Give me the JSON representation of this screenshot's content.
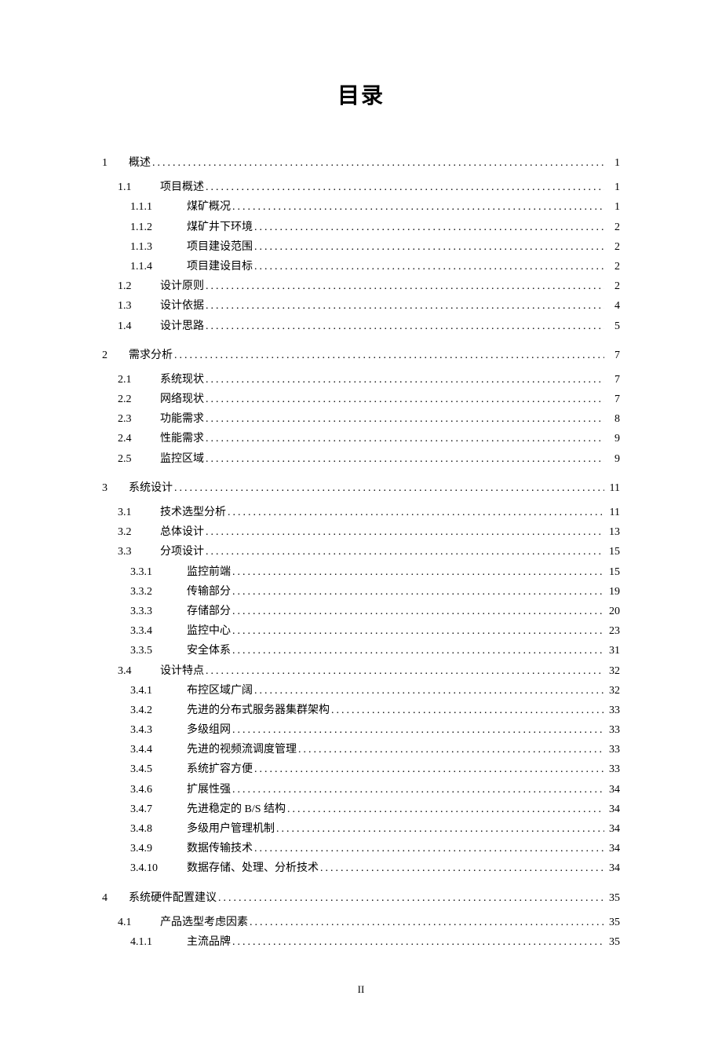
{
  "title": "目录",
  "page_number": "II",
  "theme": {
    "background_color": "#ffffff",
    "text_color": "#000000",
    "font_family": "SimSun",
    "title_fontsize": 28,
    "entry_fontsize": 14,
    "line_height": 1.8,
    "leader_letter_spacing": 3
  },
  "toc_entries": [
    {
      "level": 1,
      "num": "1",
      "text": "概述",
      "page": "1"
    },
    {
      "level": 2,
      "num": "1.1",
      "text": "项目概述",
      "page": "1"
    },
    {
      "level": 3,
      "num": "1.1.1",
      "text": "煤矿概况",
      "page": "1"
    },
    {
      "level": 3,
      "num": "1.1.2",
      "text": "煤矿井下环境",
      "page": "2"
    },
    {
      "level": 3,
      "num": "1.1.3",
      "text": "项目建设范围",
      "page": "2"
    },
    {
      "level": 3,
      "num": "1.1.4",
      "text": "项目建设目标",
      "page": "2"
    },
    {
      "level": 2,
      "num": "1.2",
      "text": "设计原则",
      "page": "2"
    },
    {
      "level": 2,
      "num": "1.3",
      "text": "设计依据",
      "page": "4"
    },
    {
      "level": 2,
      "num": "1.4",
      "text": "设计思路",
      "page": "5"
    },
    {
      "level": 1,
      "num": "2",
      "text": "需求分析",
      "page": "7"
    },
    {
      "level": 2,
      "num": "2.1",
      "text": "系统现状",
      "page": "7"
    },
    {
      "level": 2,
      "num": "2.2",
      "text": "网络现状",
      "page": "7"
    },
    {
      "level": 2,
      "num": "2.3",
      "text": "功能需求",
      "page": "8"
    },
    {
      "level": 2,
      "num": "2.4",
      "text": "性能需求",
      "page": "9"
    },
    {
      "level": 2,
      "num": "2.5",
      "text": "监控区域",
      "page": "9"
    },
    {
      "level": 1,
      "num": "3",
      "text": "系统设计",
      "page": "11"
    },
    {
      "level": 2,
      "num": "3.1",
      "text": "技术选型分析",
      "page": "11"
    },
    {
      "level": 2,
      "num": "3.2",
      "text": "总体设计",
      "page": "13"
    },
    {
      "level": 2,
      "num": "3.3",
      "text": "分项设计",
      "page": "15"
    },
    {
      "level": 3,
      "num": "3.3.1",
      "text": "监控前端",
      "page": "15"
    },
    {
      "level": 3,
      "num": "3.3.2",
      "text": "传输部分",
      "page": "19"
    },
    {
      "level": 3,
      "num": "3.3.3",
      "text": "存储部分",
      "page": "20"
    },
    {
      "level": 3,
      "num": "3.3.4",
      "text": "监控中心",
      "page": "23"
    },
    {
      "level": 3,
      "num": "3.3.5",
      "text": "安全体系",
      "page": "31"
    },
    {
      "level": 2,
      "num": "3.4",
      "text": "设计特点",
      "page": "32"
    },
    {
      "level": 3,
      "num": "3.4.1",
      "text": "布控区域广阔",
      "page": "32"
    },
    {
      "level": 3,
      "num": "3.4.2",
      "text": "先进的分布式服务器集群架构",
      "page": "33"
    },
    {
      "level": 3,
      "num": "3.4.3",
      "text": "多级组网",
      "page": "33"
    },
    {
      "level": 3,
      "num": "3.4.4",
      "text": "先进的视频流调度管理",
      "page": "33"
    },
    {
      "level": 3,
      "num": "3.4.5",
      "text": "系统扩容方便",
      "page": "33"
    },
    {
      "level": 3,
      "num": "3.4.6",
      "text": "扩展性强",
      "page": "34"
    },
    {
      "level": 3,
      "num": "3.4.7",
      "text": "先进稳定的 B/S 结构",
      "page": "34"
    },
    {
      "level": 3,
      "num": "3.4.8",
      "text": "多级用户管理机制",
      "page": "34"
    },
    {
      "level": 3,
      "num": "3.4.9",
      "text": "数据传输技术",
      "page": "34"
    },
    {
      "level": 3,
      "num": "3.4.10",
      "text": "数据存储、处理、分析技术",
      "page": "34"
    },
    {
      "level": 1,
      "num": "4",
      "text": "系统硬件配置建议",
      "page": "35"
    },
    {
      "level": 2,
      "num": "4.1",
      "text": "产品选型考虑因素",
      "page": "35"
    },
    {
      "level": 3,
      "num": "4.1.1",
      "text": "主流品牌",
      "page": "35"
    }
  ]
}
